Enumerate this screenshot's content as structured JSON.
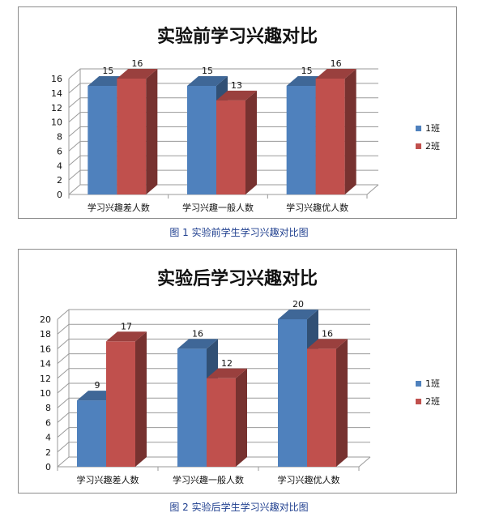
{
  "chart_data": [
    {
      "type": "bar",
      "title": "实验前学习兴趣对比",
      "caption": "图 1  实验前学生学习兴趣对比图",
      "categories": [
        "学习兴趣差人数",
        "学习兴趣一般人数",
        "学习兴趣优人数"
      ],
      "series": [
        {
          "name": "1班",
          "values": [
            15,
            15,
            15
          ],
          "color": "#4f81bd"
        },
        {
          "name": "2班",
          "values": [
            16,
            13,
            16
          ],
          "color": "#c0504d"
        }
      ],
      "ylim": [
        0,
        16
      ],
      "yticks": [
        0,
        2,
        4,
        6,
        8,
        10,
        12,
        14,
        16
      ],
      "grid": true,
      "legend": "right"
    },
    {
      "type": "bar",
      "title": "实验后学习兴趣对比",
      "caption": "图 2  实验后学生学习兴趣对比图",
      "categories": [
        "学习兴趣差人数",
        "学习兴趣一般人数",
        "学习兴趣优人数"
      ],
      "series": [
        {
          "name": "1班",
          "values": [
            9,
            16,
            20
          ],
          "color": "#4f81bd"
        },
        {
          "name": "2班",
          "values": [
            17,
            12,
            16
          ],
          "color": "#c0504d"
        }
      ],
      "ylim": [
        0,
        20
      ],
      "yticks": [
        0,
        2,
        4,
        6,
        8,
        10,
        12,
        14,
        16,
        18,
        20
      ],
      "grid": true,
      "legend": "right"
    }
  ]
}
